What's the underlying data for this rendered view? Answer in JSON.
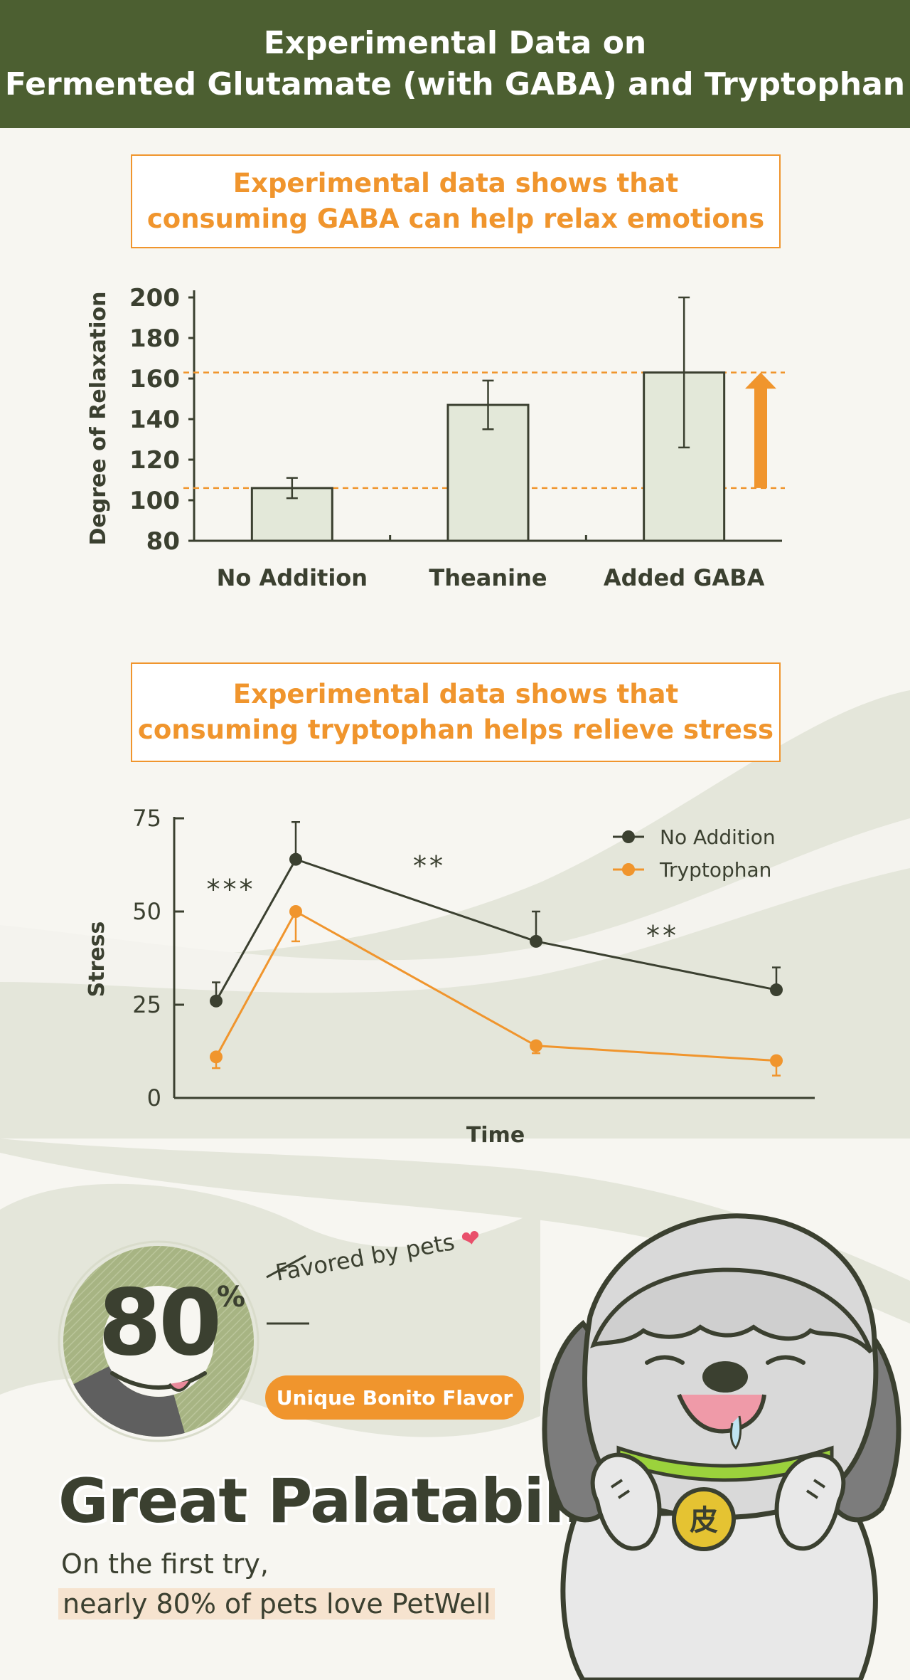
{
  "header": {
    "line1": "Experimental Data on",
    "line2": "Fermented Glutamate (with GABA) and Tryptophan"
  },
  "callout1": {
    "line1": "Experimental data shows that",
    "line2": "consuming GABA can help relax emotions"
  },
  "callout2": {
    "line1": "Experimental data shows that",
    "line2": "consuming tryptophan helps relieve stress"
  },
  "colors": {
    "header_green": "#4c5f31",
    "accent_orange": "#f0952d",
    "dark_series": "#3b4030",
    "bar_fill": "#e3e8d9"
  },
  "chart_data": [
    {
      "type": "bar",
      "ylabel": "Degree of Relaxation",
      "categories": [
        "No Addition",
        "Theanine",
        "Added GABA"
      ],
      "values": [
        106,
        147,
        163
      ],
      "error_low": [
        101,
        135,
        126
      ],
      "error_high": [
        111,
        159,
        200
      ],
      "ylim": [
        80,
        200
      ],
      "yticks": [
        80,
        100,
        120,
        140,
        160,
        180,
        200
      ],
      "reference_lines": [
        106,
        163
      ],
      "annotation": "orange arrow indicating increase from No Addition to Added GABA"
    },
    {
      "type": "line",
      "xlabel": "Time",
      "ylabel": "Stress",
      "ylim": [
        0,
        75
      ],
      "yticks": [
        0,
        25,
        50,
        75
      ],
      "legend_position": "top-right",
      "series": [
        {
          "name": "No Addition",
          "color": "#3b4030",
          "x": [
            1,
            2,
            3,
            4
          ],
          "values": [
            26,
            64,
            42,
            29
          ],
          "error_high": [
            31,
            74,
            50,
            35
          ]
        },
        {
          "name": "Tryptophan",
          "color": "#f0952d",
          "x": [
            1,
            2,
            3,
            4
          ],
          "values": [
            11,
            50,
            14,
            10
          ],
          "error_high": [
            11,
            50,
            14,
            10
          ],
          "error_low": [
            8,
            42,
            12,
            6
          ]
        }
      ],
      "significance": [
        "***",
        "**",
        "**"
      ]
    }
  ],
  "palatability": {
    "percent": "80",
    "percent_sign": "%",
    "favored_text": "Favored by pets",
    "badge": "Unique Bonito Flavor",
    "title": "Great Palatability",
    "sub_line1": "On the first try,",
    "sub_line2": "nearly 80% of pets love PetWell",
    "ring_fraction": 0.8,
    "tag_char": "皮"
  }
}
